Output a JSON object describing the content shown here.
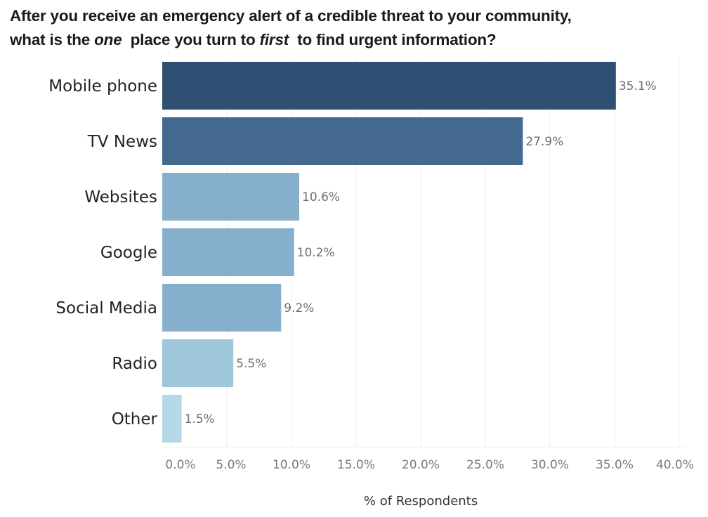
{
  "chart_data": {
    "type": "bar",
    "orientation": "horizontal",
    "title_parts": {
      "line1": "After you receive an emergency alert of a credible threat to your community,",
      "line2_pre": "what is the ",
      "line2_em1": "one",
      "line2_mid": "  place you turn to ",
      "line2_em2": "first",
      "line2_post": "  to find urgent information?"
    },
    "categories": [
      "Mobile phone",
      "TV News",
      "Websites",
      "Google",
      "Social Media",
      "Radio",
      "Other"
    ],
    "values": [
      35.1,
      27.9,
      10.6,
      10.2,
      9.2,
      5.5,
      1.5
    ],
    "value_labels": [
      "35.1%",
      "27.9%",
      "10.6%",
      "10.2%",
      "9.2%",
      "5.5%",
      "1.5%"
    ],
    "colors": [
      "#2d5073",
      "#43698f",
      "#86afcc",
      "#86afcc",
      "#86afcc",
      "#a0c6dc",
      "#b4d8e6"
    ],
    "xlabel": "% of Respondents",
    "ylabel": "",
    "xlim": [
      0,
      40
    ],
    "xticks": [
      0,
      5,
      10,
      15,
      20,
      25,
      30,
      35,
      40
    ],
    "xtick_labels": [
      "0.0%",
      "5.0%",
      "10.0%",
      "15.0%",
      "20.0%",
      "25.0%",
      "30.0%",
      "35.0%",
      "40.0%"
    ],
    "grid": true,
    "legend": "none"
  }
}
